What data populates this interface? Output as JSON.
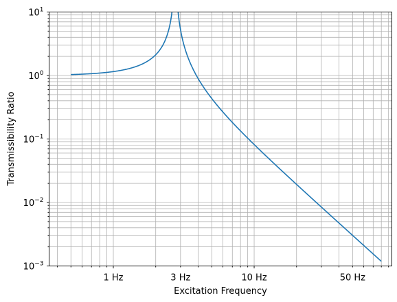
{
  "chart_data": {
    "type": "line",
    "title": "",
    "xlabel": "Excitation Frequency",
    "ylabel": "Transmissibility Ratio",
    "x_scale": "log",
    "y_scale": "log",
    "xlim": [
      0.35,
      95
    ],
    "ylim": [
      0.001,
      10
    ],
    "grid": "both",
    "legend": "none",
    "x_tick_labels": [
      {
        "value": 1,
        "label": "1 Hz"
      },
      {
        "value": 3,
        "label": "3 Hz"
      },
      {
        "value": 10,
        "label": "10 Hz"
      },
      {
        "value": 50,
        "label": "50 Hz"
      }
    ],
    "y_tick_labels": [
      {
        "value": 0.001,
        "base": "10",
        "exp": "−3"
      },
      {
        "value": 0.01,
        "base": "10",
        "exp": "−2"
      },
      {
        "value": 0.1,
        "base": "10",
        "exp": "−1"
      },
      {
        "value": 1,
        "base": "10",
        "exp": "0"
      },
      {
        "value": 10,
        "base": "10",
        "exp": "1"
      }
    ],
    "series": [
      {
        "color": "#1f77b4",
        "natural_frequency_hz": 2.75,
        "x_range": [
          0.5,
          80
        ],
        "points": [
          [
            0.5,
            1.03
          ],
          [
            1,
            1.15
          ],
          [
            1.5,
            1.42
          ],
          [
            2,
            2.12
          ],
          [
            2.5,
            5.8
          ],
          [
            2.75,
            10
          ],
          [
            3.05,
            4.3
          ],
          [
            3.5,
            1.6
          ],
          [
            4,
            0.9
          ],
          [
            5,
            0.43
          ],
          [
            7,
            0.18
          ],
          [
            10,
            0.082
          ],
          [
            20,
            0.019
          ],
          [
            50,
            0.0031
          ],
          [
            80,
            0.00119
          ]
        ]
      }
    ]
  }
}
